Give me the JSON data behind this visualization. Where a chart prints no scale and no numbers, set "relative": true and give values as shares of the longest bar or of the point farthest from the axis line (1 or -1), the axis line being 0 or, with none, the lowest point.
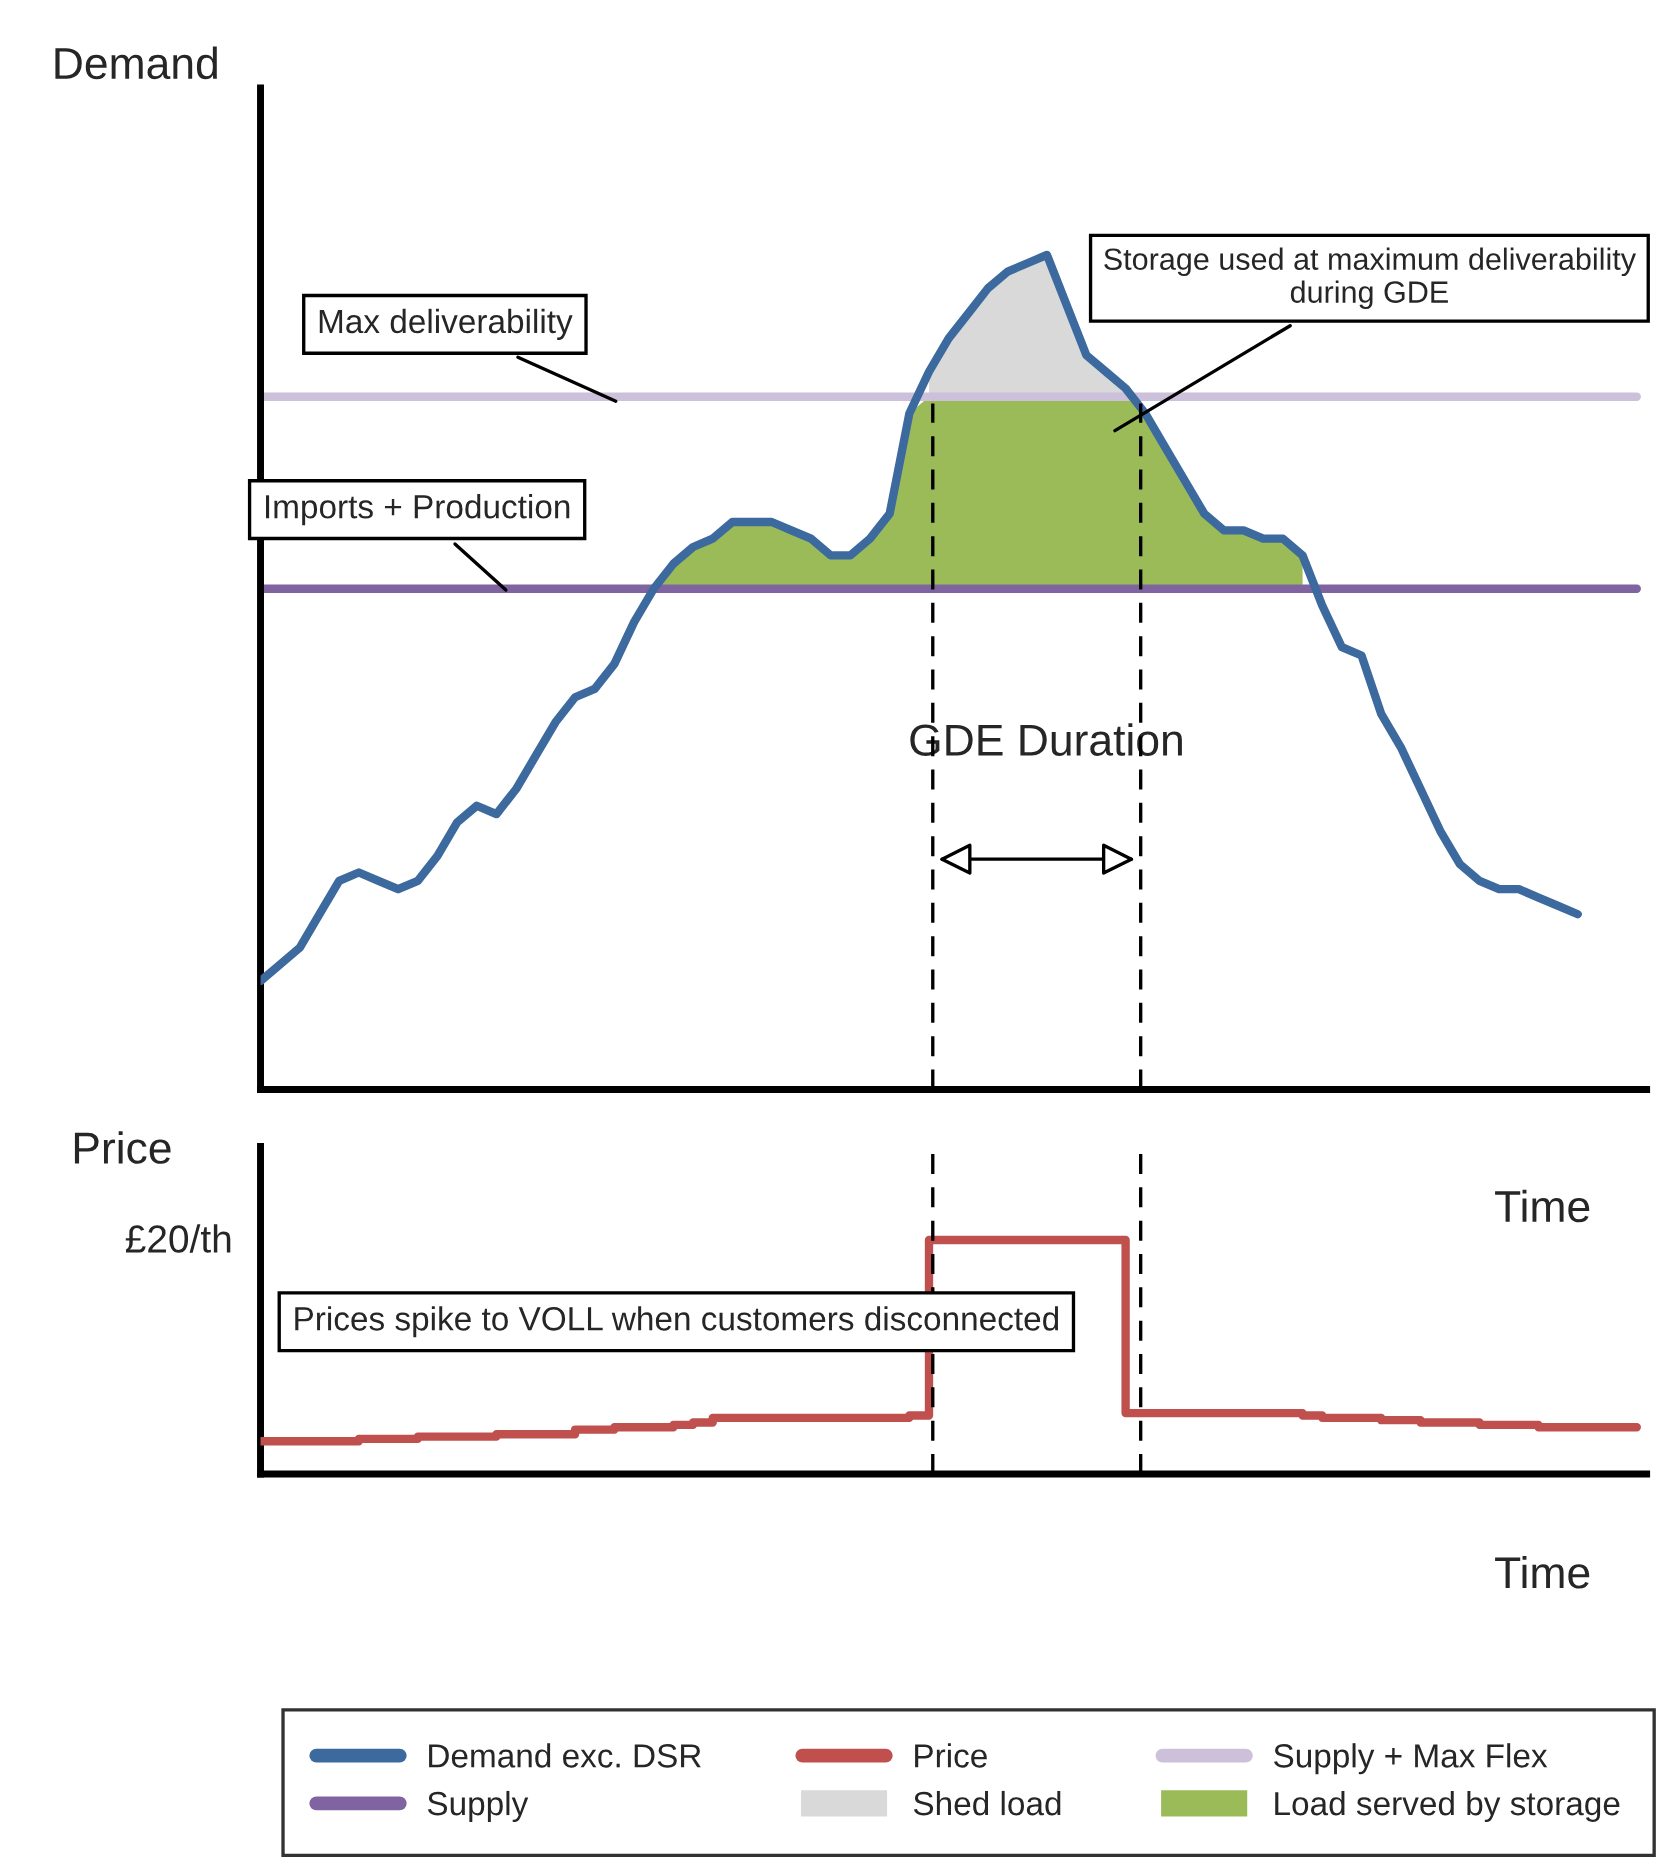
{
  "chart_data": [
    {
      "type": "line",
      "relative": true,
      "ylabel": "Demand",
      "xlabel": "Time",
      "tick_labels": false,
      "grid": false,
      "legend": "bottom",
      "categories": [
        null,
        null,
        null,
        null,
        null,
        null,
        null,
        null,
        null,
        null,
        null,
        null,
        null,
        null,
        null,
        null,
        null,
        null,
        null,
        null,
        null,
        null,
        null,
        null,
        null,
        null,
        null,
        null,
        null,
        null,
        null,
        null,
        null,
        null,
        null,
        null,
        null,
        null,
        null,
        null,
        null,
        null,
        null,
        null,
        null,
        null,
        null,
        null,
        null,
        null,
        null,
        null,
        null,
        null,
        null,
        null,
        null,
        null,
        null,
        null,
        null,
        null,
        null,
        null,
        null,
        null,
        null,
        null,
        null,
        null,
        null
      ],
      "series": [
        {
          "name": "Demand exc. DSR",
          "color": "#3d6a9e",
          "values": [
            0.13,
            0.15,
            0.17,
            0.21,
            0.25,
            0.26,
            0.25,
            0.24,
            0.25,
            0.28,
            0.32,
            0.34,
            0.33,
            0.36,
            0.4,
            0.44,
            0.47,
            0.48,
            0.51,
            0.56,
            0.6,
            0.63,
            0.65,
            0.66,
            0.68,
            0.68,
            0.68,
            0.67,
            0.66,
            0.64,
            0.64,
            0.66,
            0.69,
            0.81,
            0.86,
            0.9,
            0.93,
            0.96,
            0.98,
            0.99,
            1,
            0.94,
            0.88,
            0.86,
            0.84,
            0.81,
            0.77,
            0.73,
            0.69,
            0.67,
            0.67,
            0.66,
            0.66,
            0.64,
            0.58,
            0.53,
            0.52,
            0.45,
            0.41,
            0.36,
            0.31,
            0.27,
            0.25,
            0.24,
            0.24,
            0.23,
            0.22,
            0.21,
            null,
            null,
            null
          ]
        },
        {
          "name": "Supply",
          "color": "#8064a2",
          "values": [
            0.6,
            0.6,
            0.6,
            0.6,
            0.6,
            0.6,
            0.6,
            0.6,
            0.6,
            0.6,
            0.6,
            0.6,
            0.6,
            0.6,
            0.6,
            0.6,
            0.6,
            0.6,
            0.6,
            0.6,
            0.6,
            0.6,
            0.6,
            0.6,
            0.6,
            0.6,
            0.6,
            0.6,
            0.6,
            0.6,
            0.6,
            0.6,
            0.6,
            0.6,
            0.6,
            0.6,
            0.6,
            0.6,
            0.6,
            0.6,
            0.6,
            0.6,
            0.6,
            0.6,
            0.6,
            0.6,
            0.6,
            0.6,
            0.6,
            0.6,
            0.6,
            0.6,
            0.6,
            0.6,
            0.6,
            0.6,
            0.6,
            0.6,
            0.6,
            0.6,
            0.6,
            0.6,
            0.6,
            0.6,
            0.6,
            0.6,
            0.6,
            0.6,
            0.6,
            0.6,
            0.6
          ]
        },
        {
          "name": "Supply + Max Flex",
          "color": "#ccc0da",
          "values": [
            0.83,
            0.83,
            0.83,
            0.83,
            0.83,
            0.83,
            0.83,
            0.83,
            0.83,
            0.83,
            0.83,
            0.83,
            0.83,
            0.83,
            0.83,
            0.83,
            0.83,
            0.83,
            0.83,
            0.83,
            0.83,
            0.83,
            0.83,
            0.83,
            0.83,
            0.83,
            0.83,
            0.83,
            0.83,
            0.83,
            0.83,
            0.83,
            0.83,
            0.83,
            0.83,
            0.83,
            0.83,
            0.83,
            0.83,
            0.83,
            0.83,
            0.83,
            0.83,
            0.83,
            0.83,
            0.83,
            0.83,
            0.83,
            0.83,
            0.83,
            0.83,
            0.83,
            0.83,
            0.83,
            0.83,
            0.83,
            0.83,
            0.83,
            0.83,
            0.83,
            0.83,
            0.83,
            0.83,
            0.83,
            0.83,
            0.83,
            0.83,
            0.83,
            0.83,
            0.83,
            0.83
          ]
        },
        {
          "name": "Shed load",
          "type": "area",
          "color": "#d9d9d9",
          "values": [
            null,
            null,
            null,
            null,
            null,
            null,
            null,
            null,
            null,
            null,
            null,
            null,
            null,
            null,
            null,
            null,
            null,
            null,
            null,
            null,
            null,
            null,
            null,
            null,
            null,
            null,
            null,
            null,
            null,
            null,
            null,
            null,
            null,
            null,
            0.86,
            0.9,
            0.93,
            0.96,
            0.98,
            0.99,
            1,
            0.94,
            0.88,
            0.86,
            0.84,
            null,
            null,
            null,
            null,
            null,
            null,
            null,
            null,
            null,
            null,
            null,
            null,
            null,
            null,
            null,
            null,
            null,
            null,
            null,
            null,
            null,
            null,
            null,
            null,
            null,
            null
          ]
        },
        {
          "name": "Load served by storage",
          "type": "area",
          "color": "#9bbb59",
          "values": [
            null,
            null,
            null,
            null,
            null,
            null,
            null,
            null,
            null,
            null,
            null,
            null,
            null,
            null,
            null,
            null,
            null,
            null,
            null,
            null,
            0.6,
            0.63,
            0.65,
            0.66,
            0.68,
            0.68,
            0.68,
            0.67,
            0.66,
            0.64,
            0.64,
            0.66,
            0.69,
            0.81,
            0.83,
            0.83,
            0.83,
            0.83,
            0.83,
            0.83,
            0.83,
            0.83,
            0.83,
            0.83,
            0.83,
            0.81,
            0.77,
            0.73,
            0.69,
            0.67,
            0.67,
            0.66,
            0.66,
            0.64,
            null,
            null,
            null,
            null,
            null,
            null,
            null,
            null,
            null,
            null,
            null,
            null,
            null,
            null,
            null,
            null,
            null
          ]
        }
      ],
      "annotations": [
        "Max deliverability",
        "Imports + Production",
        "Storage used at maximum deliverability during GDE",
        "GDE Duration"
      ]
    },
    {
      "type": "step",
      "relative": true,
      "ylabel": "Price",
      "xlabel": "Time",
      "tick_labels": false,
      "grid": false,
      "legend": "bottom",
      "categories": [
        null,
        null,
        null,
        null,
        null,
        null,
        null,
        null,
        null,
        null,
        null,
        null,
        null,
        null,
        null,
        null,
        null,
        null,
        null,
        null,
        null,
        null,
        null,
        null,
        null,
        null,
        null,
        null,
        null,
        null,
        null,
        null,
        null,
        null,
        null,
        null,
        null,
        null,
        null,
        null,
        null,
        null,
        null,
        null,
        null,
        null,
        null,
        null,
        null,
        null,
        null,
        null,
        null,
        null,
        null,
        null,
        null,
        null,
        null,
        null,
        null,
        null,
        null,
        null,
        null,
        null,
        null,
        null,
        null,
        null,
        null
      ],
      "series": [
        {
          "name": "Price",
          "color": "#c0504d",
          "values": [
            0.14,
            0.14,
            0.14,
            0.14,
            0.14,
            0.15,
            0.15,
            0.15,
            0.16,
            0.16,
            0.16,
            0.16,
            0.17,
            0.17,
            0.17,
            0.17,
            0.19,
            0.19,
            0.2,
            0.2,
            0.2,
            0.21,
            0.22,
            0.24,
            0.24,
            0.24,
            0.24,
            0.24,
            0.24,
            0.24,
            0.24,
            0.24,
            0.24,
            0.25,
            1,
            1,
            1,
            1,
            1,
            1,
            1,
            1,
            1,
            1,
            0.26,
            0.26,
            0.26,
            0.26,
            0.26,
            0.26,
            0.26,
            0.26,
            0.26,
            0.25,
            0.24,
            0.24,
            0.24,
            0.23,
            0.23,
            0.22,
            0.22,
            0.22,
            0.21,
            0.21,
            0.21,
            0.2,
            0.2,
            0.2,
            0.2,
            0.2,
            0.2
          ]
        }
      ],
      "annotations": [
        "Prices spike to VOLL when customers disconnected",
        "£20/th"
      ]
    }
  ]
}
